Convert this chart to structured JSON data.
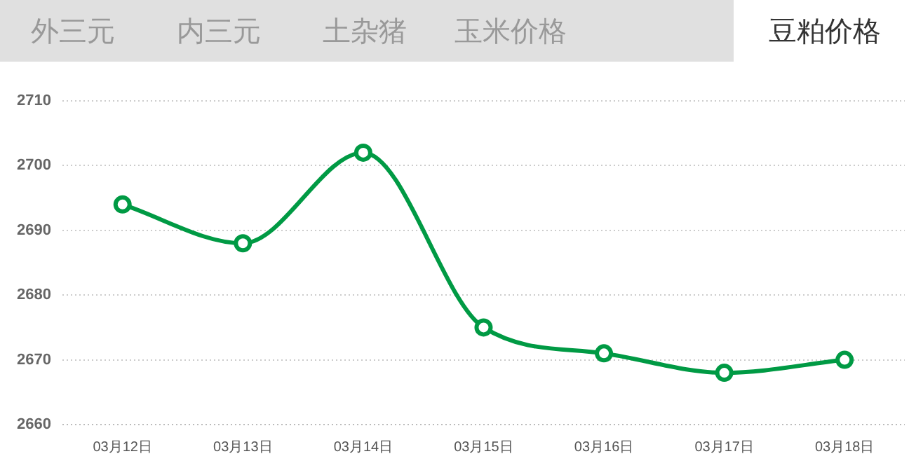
{
  "chart_data": {
    "type": "line",
    "title": "豆粕价格",
    "annotations": [
      "外三元",
      "内三元",
      "土杂猪",
      "玉米价格"
    ],
    "categories": [
      "03月12日",
      "03月13日",
      "03月14日",
      "03月15日",
      "03月16日",
      "03月17日",
      "03月18日"
    ],
    "series": [
      {
        "color": "#009a44",
        "values": [
          2694,
          2688,
          2702,
          2675,
          2671,
          2668,
          2670
        ]
      }
    ],
    "ylim": [
      2660,
      2710
    ],
    "yticks": [
      2660,
      2670,
      2680,
      2690,
      2700,
      2710
    ],
    "grid": "y",
    "legend": false,
    "marker": "circle",
    "line_style": "solid"
  }
}
